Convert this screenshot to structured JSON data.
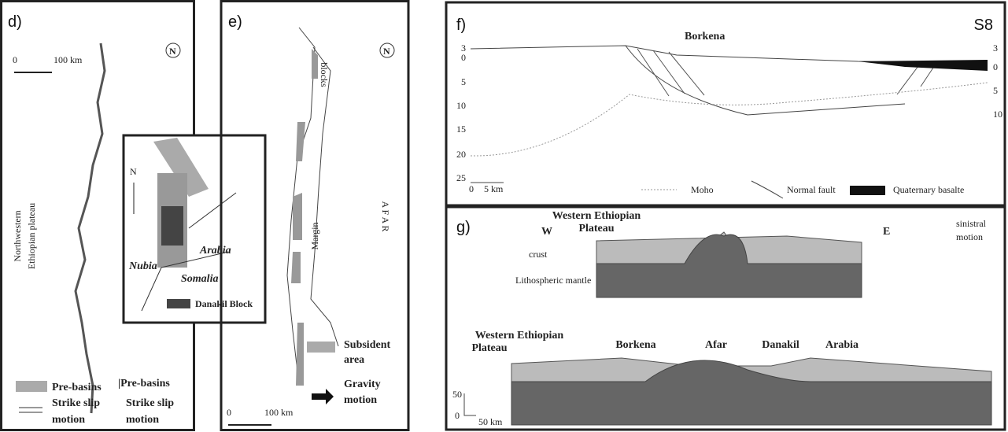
{
  "panels": {
    "d": {
      "label": "d)",
      "scale": {
        "zero": "0",
        "length": "100 km"
      },
      "north": "N",
      "region": [
        "Northwestern",
        "Ethiopian plateau"
      ],
      "inset": {
        "north": "N",
        "plates": [
          "Arabia",
          "Nubia",
          "Somalia"
        ],
        "legend": "Danakil Block"
      },
      "legend": {
        "items": [
          "Pre-basins",
          "|Pre-basins"
        ],
        "motion": [
          [
            "Strike slip",
            "motion"
          ],
          [
            "Strike slip",
            "motion"
          ]
        ]
      }
    },
    "e": {
      "label": "e)",
      "north": "N",
      "blocks": "blocks",
      "margin": "Margin",
      "afar": "A F A R",
      "legend": {
        "subsident": [
          "Subsident",
          "area"
        ],
        "gravity": [
          "Gravity",
          "motion"
        ]
      },
      "scale": {
        "zero": "0",
        "length": "100 km"
      }
    },
    "f": {
      "label": "f)",
      "section": "S8",
      "place": "Borkena",
      "left_depths": [
        "3",
        "0",
        "5",
        "10",
        "15",
        "20",
        "25"
      ],
      "right_depths": [
        "3",
        "0",
        "5",
        "10"
      ],
      "scale": {
        "zero": "0",
        "length": "5 km"
      },
      "legend": [
        "Moho",
        "Normal fault",
        "Quaternary basalte"
      ]
    },
    "g": {
      "label": "g)",
      "west": "W",
      "east": "E",
      "plateau": [
        "Western Ethiopian",
        "Plateau"
      ],
      "motion": [
        "sinistral",
        "motion"
      ],
      "layers": [
        "crust",
        "Lithospheric mantle"
      ],
      "lower": {
        "plateau": [
          "Western Ethiopian",
          "Plateau"
        ],
        "places": [
          "Borkena",
          "Afar",
          "Danakil",
          "Arabia"
        ]
      },
      "scale": {
        "top": "50",
        "zero": "0",
        "length": "50 km"
      }
    }
  }
}
